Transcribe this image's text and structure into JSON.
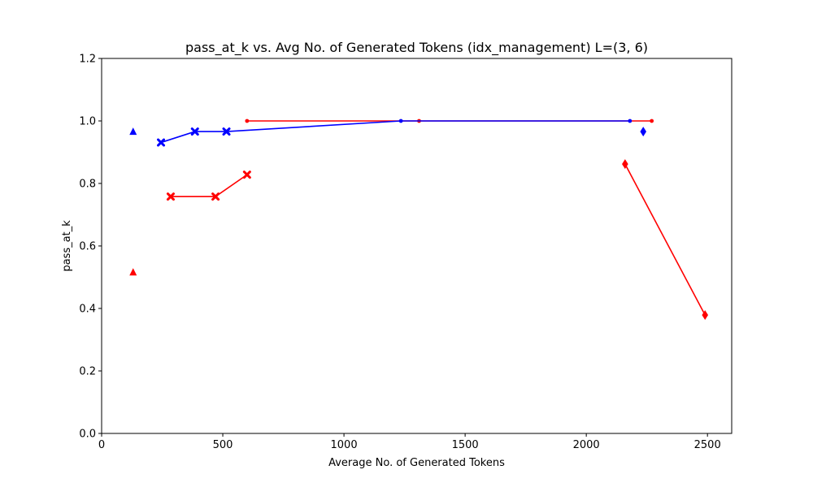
{
  "chart_data": {
    "type": "line",
    "title": "pass_at_k vs. Avg No. of Generated Tokens (idx_management) L=(3, 6)",
    "xlabel": "Average No. of Generated Tokens",
    "ylabel": "pass_at_k",
    "xlim": [
      0,
      2600
    ],
    "ylim": [
      0,
      1.2
    ],
    "xticks": [
      0,
      500,
      1000,
      1500,
      2000,
      2500
    ],
    "xtick_labels": [
      "0",
      "500",
      "1000",
      "1500",
      "2000",
      "2500"
    ],
    "yticks": [
      0,
      0.2,
      0.4,
      0.6,
      0.8,
      1.0,
      1.2
    ],
    "ytick_labels": [
      "0.0",
      "0.2",
      "0.4",
      "0.6",
      "0.8",
      "1.0",
      "1.2"
    ],
    "grid": false,
    "legend": "none",
    "series": [
      {
        "color": "#ff0000",
        "marker": "triangle",
        "line": false,
        "points": [
          [
            130,
            0.516
          ]
        ]
      },
      {
        "color": "#ff0000",
        "marker": "x",
        "line": true,
        "points": [
          [
            285,
            0.758
          ],
          [
            470,
            0.758
          ],
          [
            600,
            0.828
          ]
        ]
      },
      {
        "color": "#ff0000",
        "marker": "dot",
        "line": true,
        "points": [
          [
            600,
            1.0
          ],
          [
            1310,
            1.0
          ],
          [
            2270,
            1.0
          ]
        ]
      },
      {
        "color": "#ff0000",
        "marker": "diamond",
        "line": true,
        "points": [
          [
            2160,
            0.862
          ],
          [
            2490,
            0.379
          ]
        ]
      },
      {
        "color": "#0000ff",
        "marker": "triangle",
        "line": false,
        "points": [
          [
            130,
            0.966
          ]
        ]
      },
      {
        "color": "#0000ff",
        "marker": "x",
        "line": true,
        "points": [
          [
            245,
            0.931
          ],
          [
            385,
            0.966
          ],
          [
            515,
            0.966
          ]
        ]
      },
      {
        "color": "#0000ff",
        "marker": "dot",
        "line": true,
        "points": [
          [
            515,
            0.966
          ],
          [
            1235,
            1.0
          ],
          [
            2180,
            1.0
          ]
        ]
      },
      {
        "color": "#0000ff",
        "marker": "diamond",
        "line": false,
        "points": [
          [
            2235,
            0.966
          ]
        ]
      }
    ]
  }
}
